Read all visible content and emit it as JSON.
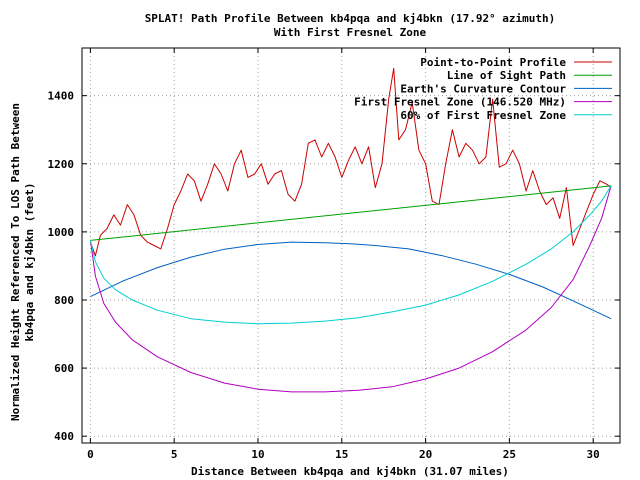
{
  "chart_data": {
    "type": "line",
    "title": "SPLAT! Path Profile Between kb4pqa and kj4bkn (17.92° azimuth)",
    "subtitle": "With First Fresnel Zone",
    "xlabel": "Distance Between kb4pqa and kj4bkn (31.07 miles)",
    "ylabel_line1": "Normalized Height Referenced To LOS Path Between",
    "ylabel_line2": "kb4pqa and kj4bkn (feet)",
    "xlim": [
      -0.5,
      31.6
    ],
    "ylim": [
      380,
      1540
    ],
    "x_ticks": [
      0,
      5,
      10,
      15,
      20,
      25,
      30
    ],
    "y_ticks": [
      400,
      600,
      800,
      1000,
      1200,
      1400
    ],
    "grid": true,
    "legend_position": "top-right",
    "series": [
      {
        "name": "Point-to-Point Profile",
        "color": "#cc0000",
        "x": [
          0,
          0.3,
          0.6,
          1,
          1.4,
          1.8,
          2.2,
          2.6,
          3,
          3.4,
          3.8,
          4.2,
          4.6,
          5,
          5.4,
          5.8,
          6.2,
          6.6,
          7,
          7.4,
          7.8,
          8.2,
          8.6,
          9,
          9.4,
          9.8,
          10.2,
          10.6,
          11,
          11.4,
          11.8,
          12.2,
          12.6,
          13,
          13.4,
          13.8,
          14.2,
          14.6,
          15,
          15.4,
          15.8,
          16.2,
          16.6,
          17,
          17.4,
          17.8,
          18.1,
          18.4,
          18.8,
          19.2,
          19.6,
          20,
          20.4,
          20.8,
          21.2,
          21.6,
          22,
          22.4,
          22.8,
          23.2,
          23.6,
          24,
          24.4,
          24.8,
          25.2,
          25.6,
          26,
          26.4,
          26.8,
          27.2,
          27.6,
          28,
          28.4,
          28.8,
          29.2,
          29.6,
          30,
          30.4,
          30.8,
          31.07
        ],
        "values": [
          970,
          930,
          990,
          1010,
          1050,
          1020,
          1080,
          1050,
          990,
          970,
          960,
          950,
          1010,
          1080,
          1120,
          1170,
          1150,
          1090,
          1140,
          1200,
          1170,
          1120,
          1200,
          1240,
          1160,
          1170,
          1200,
          1140,
          1170,
          1180,
          1110,
          1090,
          1140,
          1260,
          1270,
          1220,
          1260,
          1220,
          1160,
          1210,
          1250,
          1200,
          1250,
          1130,
          1200,
          1390,
          1480,
          1270,
          1300,
          1380,
          1240,
          1200,
          1090,
          1080,
          1200,
          1300,
          1220,
          1260,
          1240,
          1200,
          1220,
          1390,
          1190,
          1200,
          1240,
          1200,
          1120,
          1180,
          1120,
          1080,
          1100,
          1040,
          1130,
          960,
          1010,
          1060,
          1110,
          1150,
          1140,
          1130
        ]
      },
      {
        "name": "Line of Sight Path",
        "color": "#00a000",
        "x": [
          0,
          31.07
        ],
        "values": [
          975,
          1135
        ]
      },
      {
        "name": "Earth's Curvature Contour",
        "color": "#0060c0",
        "x": [
          0,
          2,
          4,
          6,
          8,
          10,
          12,
          14,
          15.5,
          17,
          19,
          21,
          23,
          25,
          27,
          29,
          31.07
        ],
        "values": [
          810,
          857,
          895,
          926,
          949,
          963,
          970,
          968,
          965,
          960,
          950,
          930,
          905,
          875,
          838,
          793,
          745
        ]
      },
      {
        "name": "First Fresnel Zone (146.520 MHz)",
        "color": "#b000c0",
        "x": [
          0,
          0.3,
          0.8,
          1.5,
          2.5,
          4,
          6,
          8,
          10,
          12,
          14,
          16,
          18,
          20,
          22,
          24,
          26,
          27.5,
          28.8,
          29.8,
          30.5,
          31.07
        ],
        "values": [
          975,
          870,
          790,
          735,
          683,
          633,
          587,
          556,
          538,
          530,
          530,
          535,
          545,
          568,
          600,
          648,
          712,
          778,
          860,
          960,
          1040,
          1135
        ]
      },
      {
        "name": "60% of First Fresnel Zone",
        "color": "#00d0d0",
        "x": [
          0,
          0.3,
          0.8,
          1.5,
          2.5,
          4,
          6,
          8,
          10,
          12,
          14,
          16,
          18,
          20,
          22,
          24,
          26,
          27.5,
          28.8,
          29.8,
          30.5,
          31.07
        ],
        "values": [
          975,
          912,
          864,
          830,
          800,
          770,
          745,
          735,
          730,
          732,
          738,
          748,
          765,
          785,
          815,
          855,
          905,
          950,
          1000,
          1050,
          1090,
          1135
        ]
      }
    ]
  }
}
